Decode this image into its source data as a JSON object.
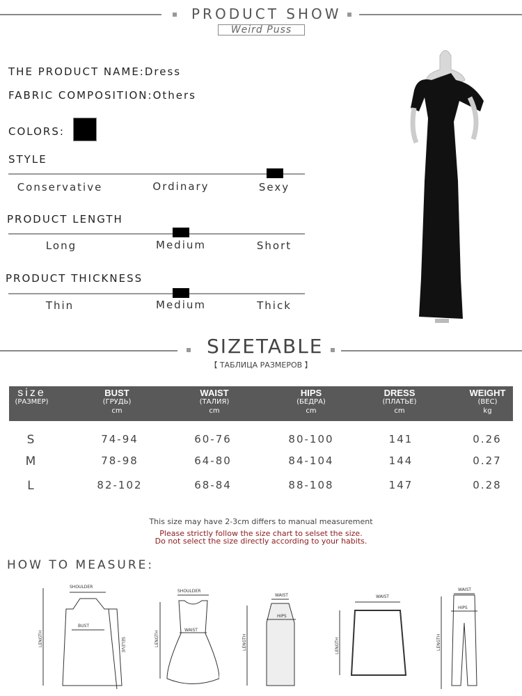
{
  "header": {
    "title": "PRODUCT SHOW",
    "brand": "Weird Puss"
  },
  "product": {
    "name_label": "THE PRODUCT NAME:",
    "name": "Dress",
    "fabric_label": "FABRIC COMPOSITION:",
    "fabric": "Others",
    "colors_label": "COLORS:",
    "colors": [
      "#000000"
    ]
  },
  "scales": [
    {
      "title": "STYLE",
      "options": [
        "Conservative",
        "Ordinary",
        "Sexy"
      ],
      "selected": "Sexy"
    },
    {
      "title": "PRODUCT LENGTH",
      "options": [
        "Long",
        "Medium",
        "Short"
      ],
      "selected": "Medium"
    },
    {
      "title": "PRODUCT THICKNESS",
      "options": [
        "Thin",
        "Medium",
        "Thick"
      ],
      "selected": "Medium"
    }
  ],
  "sizetable": {
    "title": "SIZETABLE",
    "subtitle": "【 ТАБЛИЦА РАЗМЕРОВ 】",
    "columns": [
      {
        "name": "size",
        "ru": "(РАЗМЕР)",
        "unit": ""
      },
      {
        "name": "BUST",
        "ru": "(ГРУДЬ)",
        "unit": "cm"
      },
      {
        "name": "WAIST",
        "ru": "(ТАЛИЯ)",
        "unit": "cm"
      },
      {
        "name": "HIPS",
        "ru": "(БЕДРА)",
        "unit": "cm"
      },
      {
        "name": "DRESS",
        "ru": "(ПЛАТЬЕ)",
        "unit": "cm"
      },
      {
        "name": "WEIGHT",
        "ru": "(ВЕС)",
        "unit": "kg"
      }
    ],
    "rows": [
      [
        "S",
        "74-94",
        "60-76",
        "80-100",
        "141",
        "0.26"
      ],
      [
        "M",
        "78-98",
        "64-80",
        "84-104",
        "144",
        "0.27"
      ],
      [
        "L",
        "82-102",
        "68-84",
        "88-108",
        "147",
        "0.28"
      ]
    ],
    "notes": [
      "This size may have 2-3cm differs to manual measurement",
      "Please strictly follow the size chart to selset the size.",
      "Do not select the size directly according to your habits."
    ]
  },
  "measure": {
    "title": "HOW TO MEASURE:",
    "labels": {
      "shoulder": "SHOULDER",
      "bust": "BUST",
      "length": "LENGTH",
      "sleeve": "SELEVE",
      "waist": "WAIST",
      "hips": "HIPS"
    }
  }
}
